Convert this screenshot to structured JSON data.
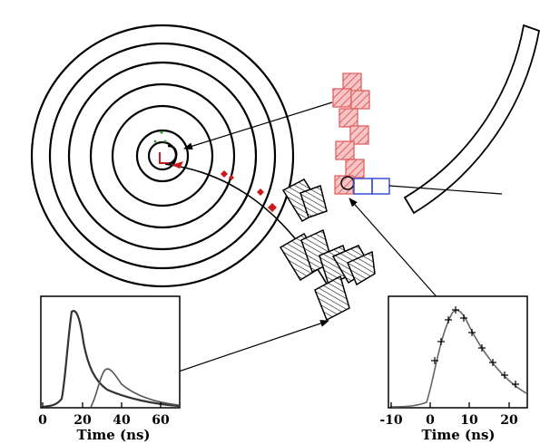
{
  "colors": {
    "line": "#000000",
    "cells": "#e06060",
    "cell_fill": "#f6c6c6",
    "blue_box": "#3a4fd6",
    "track": "#cc1a1a",
    "curve": "#444444"
  },
  "left_plot": {
    "x_ticks": [
      "0",
      "20",
      "40",
      "60"
    ],
    "x_title": "Time (ns)"
  },
  "right_plot": {
    "x_ticks": [
      "-10",
      "0",
      "10",
      "20"
    ],
    "x_title": "Time (ns)"
  }
}
